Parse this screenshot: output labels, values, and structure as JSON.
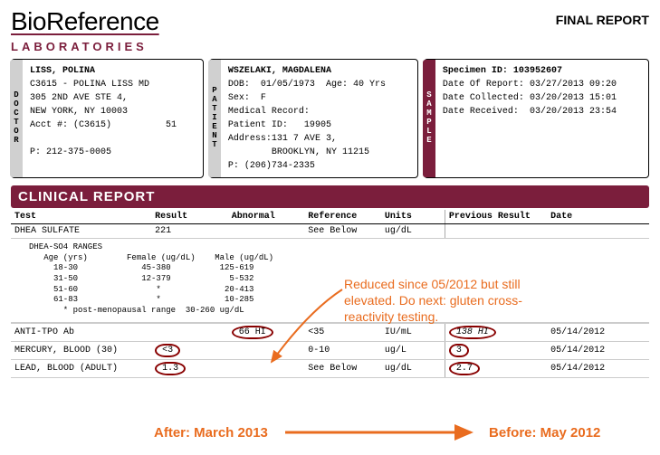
{
  "header": {
    "logo_bio": "Bio",
    "logo_ref": "Reference",
    "logo_sub": "LABORATORIES",
    "final": "FINAL REPORT"
  },
  "doctor": {
    "label": "DOCTOR",
    "name": "LISS, POLINA",
    "line1": "C3615 - POLINA LISS MD",
    "line2": "305 2ND AVE STE 4,",
    "line3": "NEW YORK, NY 10003",
    "acct": "Acct #: (C3615)          51",
    "phone": "P: 212-375-0005"
  },
  "patient": {
    "label": "PATIENT",
    "name": "WSZELAKI, MAGDALENA",
    "dob": "DOB:  01/05/1973  Age: 40 Yrs",
    "sex": "Sex:  F",
    "mr": "Medical Record:",
    "pid": "Patient ID:   19905",
    "addr1": "Address:131 7 AVE 3,",
    "addr2": "        BROOKLYN, NY 11215",
    "phone": "P: (206)734-2335"
  },
  "sample": {
    "label": "SAMPLE",
    "spec": "Specimen ID: 103952607",
    "dor": "Date Of Report: 03/27/2013 09:20",
    "dcol": "Date Collected: 03/20/2013 15:01",
    "drec": "Date Received:  03/20/2013 23:54"
  },
  "section_title": "CLINICAL REPORT",
  "columns": {
    "test": "Test",
    "result": "Result",
    "abnormal": "Abnormal",
    "reference": "Reference",
    "units": "Units",
    "prev": "Previous Result",
    "date": "Date"
  },
  "rows": [
    {
      "test": "DHEA SULFATE",
      "result": "221",
      "abnormal": "",
      "reference": "See Below",
      "units": "ug/dL",
      "prev": "",
      "date": ""
    },
    {
      "test": "ANTI-TPO Ab",
      "result": "",
      "abnormal": "66 HI",
      "reference": "<35",
      "units": "IU/mL",
      "prev": "138 HI",
      "date": "05/14/2012",
      "circ_abnormal": true,
      "circ_prev": true
    },
    {
      "test": "MERCURY, BLOOD (30)",
      "result": "<3",
      "abnormal": "",
      "reference": "0-10",
      "units": "ug/L",
      "prev": "3",
      "date": "05/14/2012",
      "circ_result": true,
      "circ_prev": true
    },
    {
      "test": "LEAD, BLOOD (ADULT)",
      "result": "1.3",
      "abnormal": "",
      "reference": "See Below",
      "units": "ug/dL",
      "prev": "2.7",
      "date": "05/14/2012",
      "circ_result": true,
      "circ_prev": true
    }
  ],
  "ranges": "DHEA-SO4 RANGES\n   Age (yrs)        Female (ug/dL)    Male (ug/dL)\n     18-30             45-380          125-619\n     31-50             12-379            5-532\n     51-60                *             20-413\n     61-83                *             10-285\n       * post-menopausal range  30-260 ug/dL",
  "annotations": {
    "note": "Reduced since 05/2012 but still elevated. Do next: gluten cross-reactivity testing.",
    "after": "After: March 2013",
    "before": "Before: May 2012"
  }
}
